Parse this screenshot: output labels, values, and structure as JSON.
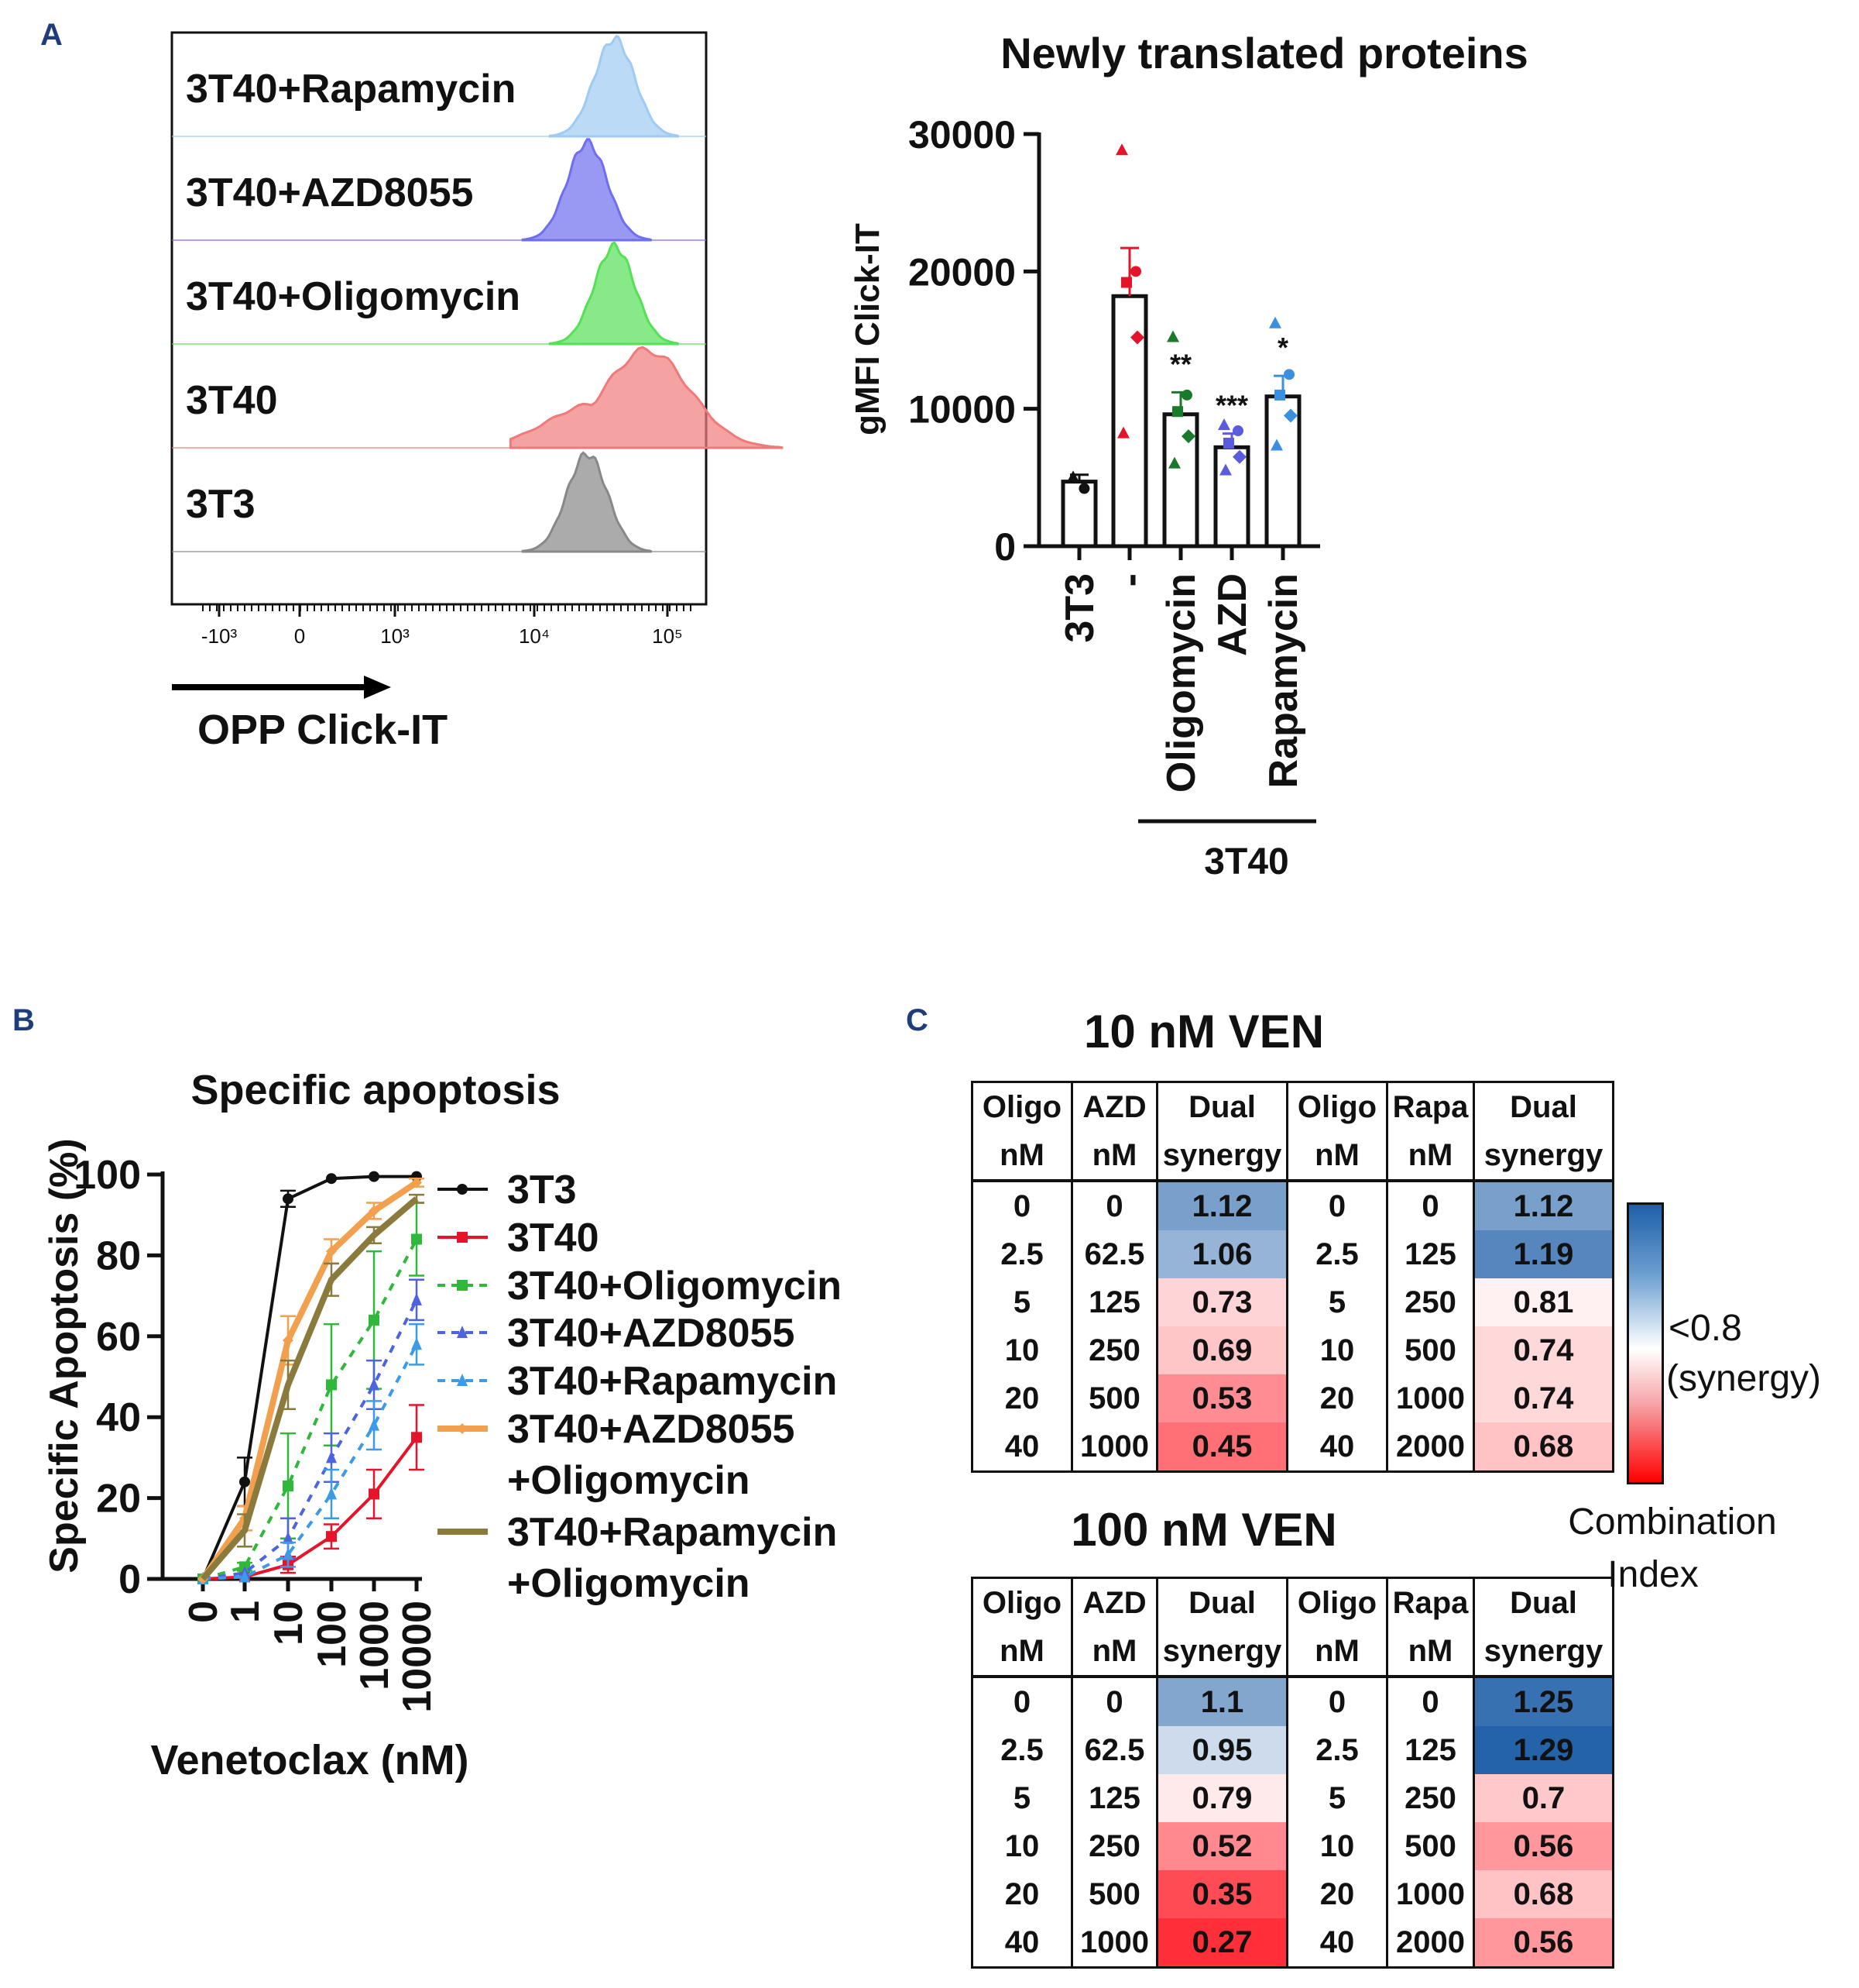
{
  "panel_letters": {
    "a": "A",
    "b": "B",
    "c": "C"
  },
  "chart_data": [
    {
      "type": "histogram-overlay",
      "panel": "A",
      "samples": [
        {
          "label": "3T40+Rapamycin",
          "color": "#9ecbf2",
          "peak": 40000
        },
        {
          "label": "3T40+AZD8055",
          "color": "#6e6ef0",
          "peak": 25000
        },
        {
          "label": "3T40+Oligomycin",
          "color": "#56e056",
          "peak": 40000
        },
        {
          "label": "3T40",
          "color": "#f07a7a",
          "peak": 70000
        },
        {
          "label": "3T3",
          "color": "#888888",
          "peak": 25000
        }
      ],
      "xticks": [
        "-10³",
        "0",
        "10³",
        "10⁴",
        "10⁵"
      ],
      "xlabel": "OPP Click-IT"
    },
    {
      "type": "bar",
      "panel": "A",
      "title": "Newly translated proteins",
      "ylabel": "gMFI Click-IT",
      "ylim": [
        0,
        30000
      ],
      "yticks": [
        "0",
        "10000",
        "20000",
        "30000"
      ],
      "categories": [
        "3T3",
        "-",
        "Oligomycin",
        "AZD",
        "Rapamycin"
      ],
      "group_label": "3T40",
      "values": [
        4700,
        18200,
        9600,
        7200,
        10900
      ],
      "errors": [
        500,
        3500,
        1600,
        1000,
        1500
      ],
      "significance": [
        "",
        "",
        "**",
        "***",
        "*"
      ],
      "colors": [
        "#111111",
        "#e5142a",
        "#1a7a2c",
        "#5b5bde",
        "#3b8fe0"
      ],
      "points": [
        [
          5000,
          4200
        ],
        [
          28800,
          20000,
          19200,
          15200,
          8200
        ],
        [
          15200,
          11000,
          9800,
          8000,
          6000
        ],
        [
          8800,
          8400,
          7500,
          6500,
          5500
        ],
        [
          16200,
          12500,
          11000,
          9500,
          7300
        ]
      ]
    },
    {
      "type": "line",
      "panel": "B",
      "title": "Specific apoptosis",
      "xlabel": "Venetoclax (nM)",
      "ylabel": "Specific Apoptosis (%)",
      "x": [
        "0",
        "1",
        "10",
        "100",
        "1000",
        "10000"
      ],
      "ylim": [
        0,
        100
      ],
      "yticks": [
        "0",
        "20",
        "40",
        "60",
        "80",
        "100"
      ],
      "legend_position": "right",
      "series": [
        {
          "name": "3T3",
          "color": "#111111",
          "dash": "solid",
          "marker": "circle",
          "values": [
            0,
            24,
            94,
            99,
            99.5,
            99.5
          ],
          "errors": [
            0,
            6,
            2,
            0,
            0,
            0
          ]
        },
        {
          "name": "3T40",
          "color": "#e5142a",
          "dash": "solid",
          "marker": "square",
          "values": [
            0,
            0.5,
            3.5,
            10.5,
            21,
            35
          ],
          "errors": [
            0,
            0,
            2,
            3,
            6,
            8
          ]
        },
        {
          "name": "3T40+Oligomycin",
          "color": "#2fb83a",
          "dash": "dash",
          "marker": "square",
          "values": [
            0,
            3,
            23,
            48,
            64,
            84
          ],
          "errors": [
            0,
            1,
            13,
            15,
            17,
            9
          ]
        },
        {
          "name": "3T40+AZD8055",
          "color": "#4d63e0",
          "dash": "dash",
          "marker": "triangle",
          "values": [
            0,
            1.5,
            10,
            30,
            48,
            69
          ],
          "errors": [
            0,
            0,
            5,
            6,
            6,
            5
          ]
        },
        {
          "name": "3T40+Rapamycin",
          "color": "#3b9be8",
          "dash": "dash",
          "marker": "triangle",
          "values": [
            0,
            0.5,
            6,
            21,
            38,
            58
          ],
          "errors": [
            0,
            0,
            3,
            6,
            6,
            5
          ]
        },
        {
          "name": "3T40+AZD8055\n+Oligomycin",
          "color": "#f2a04e",
          "dash": "solid",
          "marker": "diamond",
          "values": [
            0,
            15,
            59,
            81,
            91,
            98
          ],
          "errors": [
            0,
            3,
            6,
            3,
            2,
            1
          ]
        },
        {
          "name": "3T40+Rapamycin\n+Oligomycin",
          "color": "#8a7a3c",
          "dash": "solid",
          "marker": "none",
          "values": [
            0,
            12,
            48,
            74,
            85,
            94
          ],
          "errors": [
            0,
            4,
            6,
            4,
            2,
            1
          ]
        }
      ]
    },
    {
      "type": "table",
      "panel": "C",
      "title": "10 nM VEN",
      "header1": [
        "Oligo",
        "AZD",
        "Dual",
        "Oligo",
        "Rapa",
        "Dual"
      ],
      "header2": [
        "nM",
        "nM",
        "synergy",
        "nM",
        "nM",
        "synergy"
      ],
      "rows": [
        [
          "0",
          "0",
          "1.12",
          "0",
          "0",
          "1.12"
        ],
        [
          "2.5",
          "62.5",
          "1.06",
          "2.5",
          "125",
          "1.19"
        ],
        [
          "5",
          "125",
          "0.73",
          "5",
          "250",
          "0.81"
        ],
        [
          "10",
          "250",
          "0.69",
          "10",
          "500",
          "0.74"
        ],
        [
          "20",
          "500",
          "0.53",
          "20",
          "1000",
          "0.74"
        ],
        [
          "40",
          "1000",
          "0.45",
          "40",
          "2000",
          "0.68"
        ]
      ]
    },
    {
      "type": "table",
      "panel": "C",
      "title": "100 nM VEN",
      "header1": [
        "Oligo",
        "AZD",
        "Dual",
        "Oligo",
        "Rapa",
        "Dual"
      ],
      "header2": [
        "nM",
        "nM",
        "synergy",
        "nM",
        "nM",
        "synergy"
      ],
      "rows": [
        [
          "0",
          "0",
          "1.1",
          "0",
          "0",
          "1.25"
        ],
        [
          "2.5",
          "62.5",
          "0.95",
          "2.5",
          "125",
          "1.29"
        ],
        [
          "5",
          "125",
          "0.79",
          "5",
          "250",
          "0.7"
        ],
        [
          "10",
          "250",
          "0.52",
          "10",
          "500",
          "0.56"
        ],
        [
          "20",
          "500",
          "0.35",
          "20",
          "1000",
          "0.68"
        ],
        [
          "40",
          "1000",
          "0.27",
          "40",
          "2000",
          "0.56"
        ]
      ]
    }
  ],
  "colorbar": {
    "label_line1": "<0.8",
    "label_line2": "(synergy)",
    "caption_line1": "Combination",
    "caption_line2": "Index"
  }
}
